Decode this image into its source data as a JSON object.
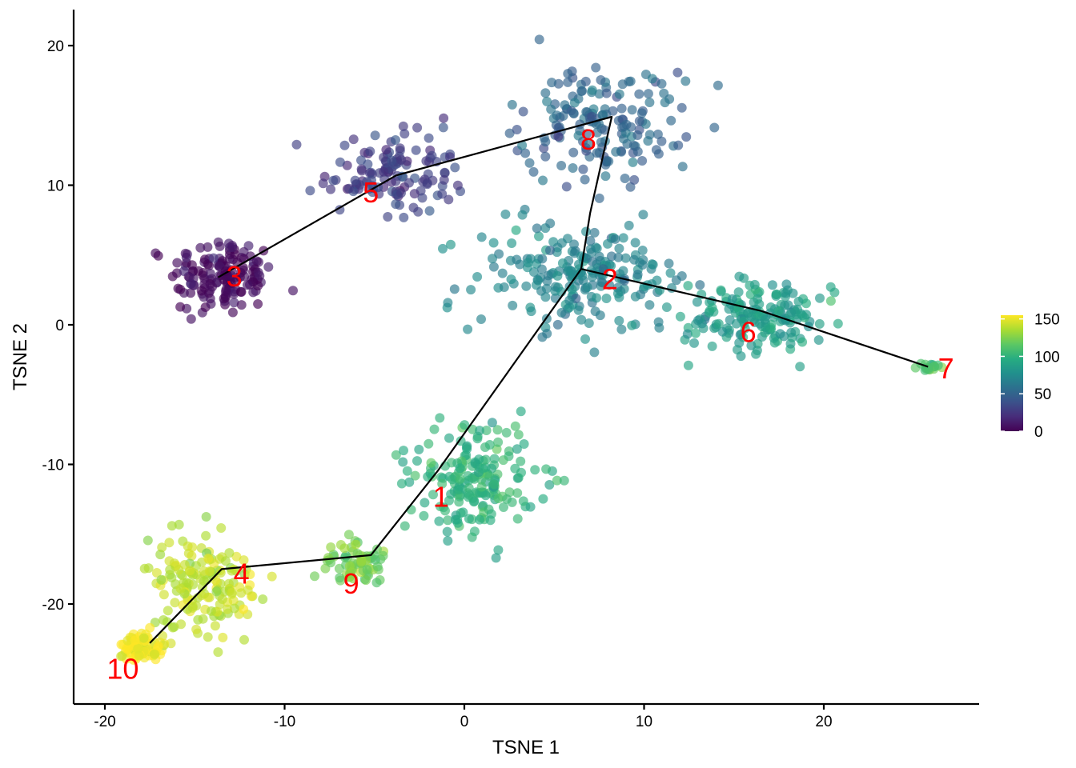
{
  "chart_data": {
    "type": "scatter",
    "title": "",
    "xlabel": "TSNE 1",
    "ylabel": "TSNE 2",
    "xlim": [
      -22,
      28.5
    ],
    "ylim": [
      -27,
      22.5
    ],
    "xticks": [
      -20,
      -10,
      0,
      10,
      20
    ],
    "yticks": [
      -20,
      -10,
      0,
      10,
      20
    ],
    "xtick_labels": [
      "-20",
      "-10",
      "0",
      "10",
      "20"
    ],
    "ytick_labels": [
      "-20",
      "-10",
      "0",
      "10",
      "20"
    ],
    "color_variable_range": [
      0,
      155
    ],
    "legend": {
      "position": "right",
      "ticks": [
        0,
        50,
        100,
        150
      ],
      "tick_labels": [
        "0",
        "50",
        "100",
        "150"
      ]
    },
    "clusters": [
      {
        "id": "3",
        "label": "3",
        "center": [
          -13.5,
          3.5
        ],
        "spread": [
          2.6,
          2.6
        ],
        "n": 150,
        "value": 5
      },
      {
        "id": "5",
        "label": "5",
        "center": [
          -3.8,
          10.8
        ],
        "spread": [
          3.5,
          2.6
        ],
        "n": 130,
        "value": 28
      },
      {
        "id": "8",
        "label": "8",
        "center": [
          7.5,
          14.5
        ],
        "spread": [
          4.0,
          3.6
        ],
        "n": 170,
        "value": 52
      },
      {
        "id": "2",
        "label": "2",
        "center": [
          6.5,
          3.5
        ],
        "spread": [
          5.5,
          3.6
        ],
        "n": 220,
        "value": 70
      },
      {
        "id": "6",
        "label": "6",
        "center": [
          16.5,
          0.5
        ],
        "spread": [
          3.6,
          2.6
        ],
        "n": 170,
        "value": 88
      },
      {
        "id": "7",
        "label": "7",
        "center": [
          25.8,
          -3.0
        ],
        "spread": [
          0.6,
          0.4
        ],
        "n": 18,
        "value": 118
      },
      {
        "id": "1",
        "label": "1",
        "center": [
          0.5,
          -11.0
        ],
        "spread": [
          3.2,
          3.5
        ],
        "n": 190,
        "value": 100
      },
      {
        "id": "9",
        "label": "9",
        "center": [
          -6.0,
          -17.0
        ],
        "spread": [
          1.6,
          1.4
        ],
        "n": 70,
        "value": 122
      },
      {
        "id": "4",
        "label": "4",
        "center": [
          -14.5,
          -18.5
        ],
        "spread": [
          2.8,
          3.0
        ],
        "n": 160,
        "value": 140
      },
      {
        "id": "10",
        "label": "10",
        "center": [
          -18.0,
          -23.0
        ],
        "spread": [
          1.2,
          0.9
        ],
        "n": 80,
        "value": 155
      }
    ],
    "trajectory": [
      {
        "from": "10",
        "path": [
          [
            -17.5,
            -22.8
          ],
          [
            -13.5,
            -17.5
          ],
          [
            -5.2,
            -16.5
          ],
          [
            -1.5,
            -10.5
          ],
          [
            6.5,
            4.0
          ]
        ]
      },
      {
        "from": "2",
        "path": [
          [
            6.5,
            4.0
          ],
          [
            7.0,
            8.0
          ],
          [
            8.2,
            14.9
          ],
          [
            -3.8,
            10.7
          ],
          [
            -13.7,
            3.4
          ]
        ]
      },
      {
        "from": "2b",
        "path": [
          [
            6.5,
            4.0
          ],
          [
            16.5,
            1.0
          ],
          [
            25.8,
            -3.0
          ]
        ]
      }
    ],
    "label_positions": [
      {
        "text": "3",
        "x": -12.8,
        "y": 3.3
      },
      {
        "text": "5",
        "x": -5.2,
        "y": 9.3
      },
      {
        "text": "8",
        "x": 6.9,
        "y": 13.1
      },
      {
        "text": "2",
        "x": 8.1,
        "y": 3.1
      },
      {
        "text": "6",
        "x": 15.8,
        "y": -0.7
      },
      {
        "text": "7",
        "x": 26.8,
        "y": -3.3
      },
      {
        "text": "1",
        "x": -1.3,
        "y": -12.5
      },
      {
        "text": "9",
        "x": -6.3,
        "y": -18.7
      },
      {
        "text": "4",
        "x": -12.4,
        "y": -18.0
      },
      {
        "text": "10",
        "x": -19.0,
        "y": -24.8
      }
    ]
  }
}
